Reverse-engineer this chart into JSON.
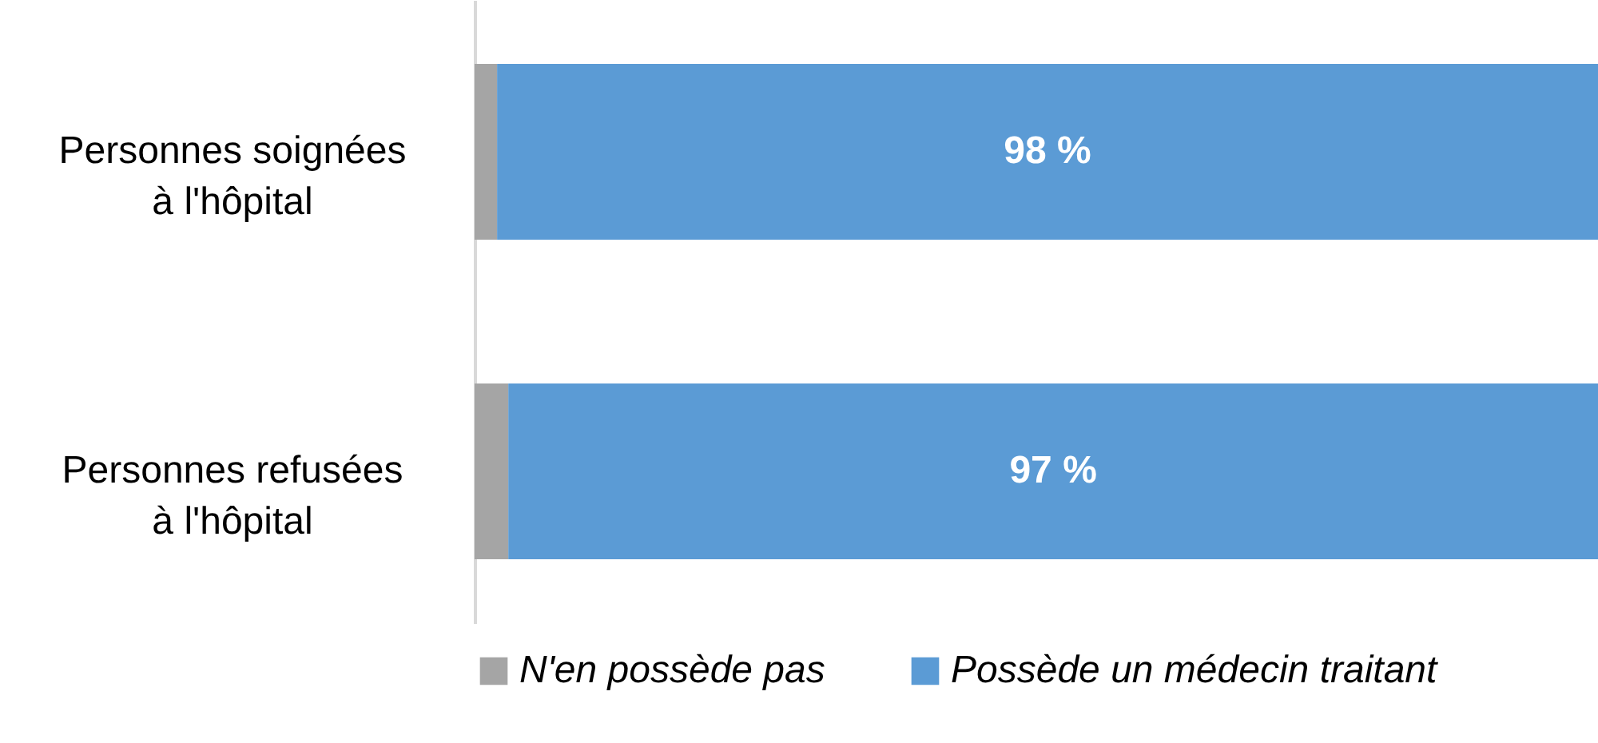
{
  "chart_data": {
    "type": "bar",
    "orientation": "horizontal",
    "stacked": true,
    "categories": [
      "Personnes soignées\nà l'hôpital",
      "Personnes refusées\nà l'hôpital"
    ],
    "series": [
      {
        "name": "N'en possède pas",
        "color": "#a5a5a5",
        "values": [
          2,
          3
        ]
      },
      {
        "name": "Possède un médecin traitant",
        "color": "#5b9bd5",
        "values": [
          98,
          97
        ],
        "value_labels": [
          "98 %",
          "97 %"
        ]
      }
    ],
    "xlim": [
      0,
      100
    ],
    "tick_labels": "y",
    "legend": "bottom"
  }
}
